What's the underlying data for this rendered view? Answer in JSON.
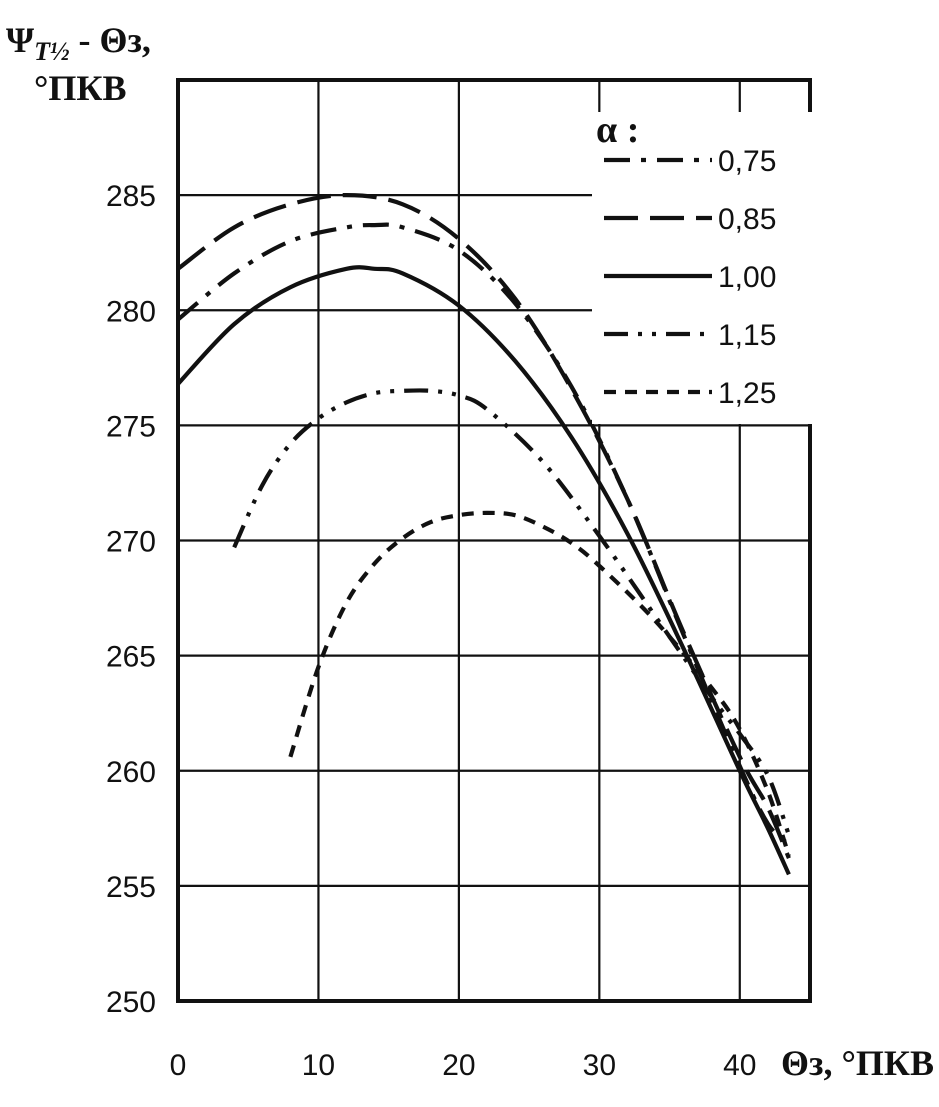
{
  "chart_data": {
    "type": "line",
    "y_title": {
      "main": "Ψ",
      "subscript": "T½",
      "suffix": " - Θз,",
      "unit": "°ПКВ"
    },
    "x_title": "Θз, °ПКВ",
    "xlim": [
      0,
      45
    ],
    "ylim": [
      250,
      290
    ],
    "x_ticks": [
      0,
      10,
      20,
      30,
      40
    ],
    "y_ticks": [
      250,
      255,
      260,
      265,
      270,
      275,
      280,
      285
    ],
    "grid": true,
    "legend": {
      "title": "α :",
      "placement": "top-right"
    },
    "series": [
      {
        "name": "0,75",
        "dash": "dashdot",
        "color": "#111111",
        "x": [
          0,
          4,
          8,
          12,
          14,
          16,
          20,
          24,
          28,
          32,
          36,
          40,
          42,
          43.5
        ],
        "y": [
          279.6,
          281.6,
          283.0,
          283.6,
          283.7,
          283.6,
          282.6,
          280.3,
          276.7,
          271.8,
          265.9,
          260.2,
          257.7,
          256.8
        ]
      },
      {
        "name": "0,85",
        "dash": "longdash",
        "color": "#111111",
        "x": [
          0,
          4,
          8,
          12,
          16,
          20,
          24,
          28,
          32,
          36,
          40,
          42,
          43.5
        ],
        "y": [
          281.8,
          283.6,
          284.6,
          285.0,
          284.6,
          283.1,
          280.5,
          276.6,
          271.8,
          266.0,
          260.6,
          258.4,
          256.2
        ]
      },
      {
        "name": "1,00",
        "dash": "solid",
        "color": "#111111",
        "x": [
          0,
          4,
          8,
          12,
          14,
          16,
          20,
          24,
          28,
          32,
          36,
          40,
          42,
          43.5
        ],
        "y": [
          276.8,
          279.4,
          281.0,
          281.8,
          281.8,
          281.6,
          280.2,
          277.8,
          274.5,
          270.3,
          265.3,
          260.0,
          257.5,
          255.5
        ]
      },
      {
        "name": "1,15",
        "dash": "dashdotdot",
        "color": "#111111",
        "x": [
          4,
          6,
          8,
          10,
          12,
          14,
          16,
          18,
          20,
          22,
          26,
          30,
          34,
          38,
          40,
          42,
          43.5
        ],
        "y": [
          269.7,
          272.4,
          274.2,
          275.3,
          276.0,
          276.4,
          276.5,
          276.5,
          276.3,
          275.7,
          273.4,
          270.2,
          266.7,
          263.2,
          261.6,
          259.8,
          257.2
        ]
      },
      {
        "name": "1,25",
        "dash": "shortdash",
        "color": "#111111",
        "x": [
          8,
          10,
          12,
          14,
          16,
          18,
          20,
          22,
          24,
          26,
          28,
          30,
          34,
          38,
          40,
          42,
          43.5
        ],
        "y": [
          260.6,
          264.5,
          267.3,
          269.0,
          270.1,
          270.8,
          271.1,
          271.2,
          271.1,
          270.6,
          269.9,
          268.9,
          266.5,
          263.6,
          261.8,
          259.1,
          256.3
        ]
      }
    ]
  }
}
